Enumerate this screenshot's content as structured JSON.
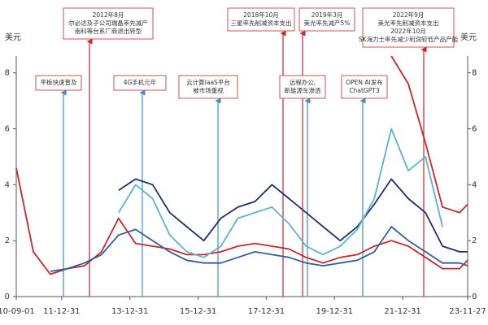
{
  "chart_data": {
    "type": "line",
    "ylabel": "美元",
    "ylabel_right": "美元",
    "x": [
      "10-09-01",
      "11-03-01",
      "11-09-01",
      "12-03-01",
      "12-09-01",
      "13-03-01",
      "13-09-01",
      "14-03-01",
      "14-09-01",
      "15-03-01",
      "15-09-01",
      "16-03-01",
      "16-09-01",
      "17-03-01",
      "17-09-01",
      "18-03-01",
      "18-09-01",
      "19-03-01",
      "19-09-01",
      "20-03-01",
      "20-09-01",
      "21-03-01",
      "21-09-01",
      "22-03-01",
      "22-09-01",
      "23-03-01",
      "23-09-01",
      "23-11-27"
    ],
    "xlim": [
      "10-09-01",
      "23-11-27"
    ],
    "xticks": [
      "10-09-01",
      "11-12-31",
      "13-12-31",
      "15-12-31",
      "17-12-31",
      "19-12-31",
      "21-12-31",
      "23-11-27"
    ],
    "ylim": [
      0,
      8.6
    ],
    "yticks": [
      0,
      2,
      4,
      6,
      8
    ],
    "grid": false,
    "series": [
      {
        "color": "#c8262b",
        "values": [
          4.6,
          1.6,
          0.8,
          1.0,
          1.1,
          1.6,
          2.8,
          1.9,
          1.8,
          1.7,
          1.5,
          1.5,
          1.6,
          1.8,
          1.9,
          1.8,
          1.7,
          1.4,
          1.2,
          1.4,
          1.5,
          1.8,
          2.0,
          1.8,
          1.4,
          1.0,
          1.0,
          1.3
        ]
      },
      {
        "color": "#c8262b",
        "values": [
          null,
          null,
          null,
          null,
          null,
          null,
          null,
          null,
          null,
          null,
          null,
          null,
          null,
          null,
          null,
          null,
          null,
          null,
          null,
          null,
          null,
          null,
          8.6,
          7.6,
          5.5,
          3.2,
          3.0,
          3.3
        ]
      },
      {
        "color": "#1f2f6e",
        "values": [
          null,
          null,
          null,
          null,
          null,
          null,
          3.8,
          4.2,
          4.0,
          3.0,
          2.5,
          2.0,
          2.8,
          3.2,
          3.4,
          4.0,
          3.5,
          3.0,
          2.5,
          2.0,
          2.5,
          3.3,
          4.2,
          3.5,
          3.0,
          1.8,
          1.6,
          1.6
        ]
      },
      {
        "color": "#5ab4cf",
        "values": [
          null,
          null,
          null,
          null,
          null,
          null,
          3.0,
          4.0,
          3.5,
          2.2,
          1.6,
          1.4,
          1.8,
          2.8,
          3.0,
          3.2,
          2.6,
          1.8,
          1.5,
          1.8,
          2.4,
          3.5,
          6.0,
          4.5,
          5.0,
          2.5,
          null,
          null
        ]
      },
      {
        "color": "#2f5f9e",
        "values": [
          null,
          null,
          0.9,
          1.0,
          1.2,
          1.5,
          2.2,
          2.4,
          2.0,
          1.6,
          1.3,
          1.2,
          1.2,
          1.4,
          1.6,
          1.5,
          1.4,
          1.2,
          1.1,
          1.2,
          1.3,
          1.6,
          2.5,
          2.0,
          1.6,
          1.2,
          1.2,
          1.1
        ]
      }
    ],
    "annotations": [
      {
        "text": [
          "平板快速普及"
        ]
      },
      {
        "text": [
          "2012年8月",
          "尔必达及子公司瑞晶率先减产",
          "南科等台系厂商退出转型"
        ]
      },
      {
        "text": [
          "4G手机元年"
        ]
      },
      {
        "text": [
          "云计算IaaS平台",
          "被市场重视"
        ]
      },
      {
        "text": [
          "2018年10月",
          "三星率先削减资本支出"
        ]
      },
      {
        "text": [
          "2019年3月",
          "美光率先减产5%"
        ]
      },
      {
        "text": [
          "远程办公,",
          "新能源车渗透"
        ]
      },
      {
        "text": [
          "OPEN AI发布",
          "ChatGPT3"
        ]
      },
      {
        "text": [
          "2022年9月",
          "美光率先削减资本支出",
          "2022年10月",
          "SK海力士率先减少利润较低产品产能"
        ]
      }
    ]
  }
}
